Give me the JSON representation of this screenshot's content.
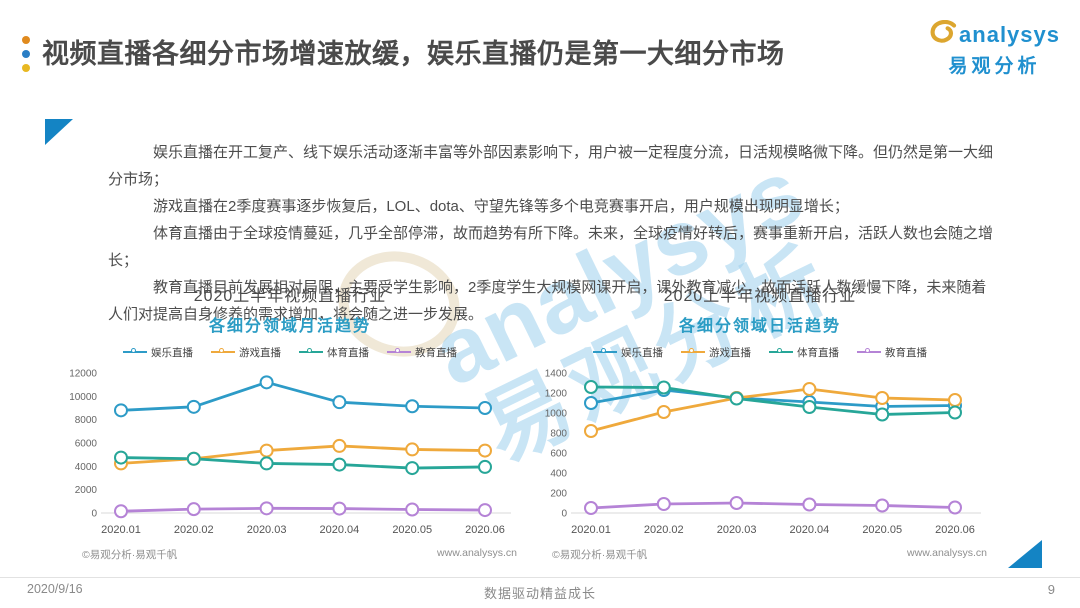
{
  "header": {
    "title": "视频直播各细分市场增速放缓，娱乐直播仍是第一大细分市场",
    "logo": {
      "brand": "analysys",
      "brand_cn": "易观分析"
    }
  },
  "bullets": [
    "娱乐直播在开工复产、线下娱乐活动逐渐丰富等外部因素影响下，用户被一定程度分流，日活规模略微下降。但仍然是第一大细分市场；",
    "游戏直播在2季度赛事逐步恢复后，LOL、dota、守望先锋等多个电竞赛事开启，用户规模出现明显增长；",
    "体育直播由于全球疫情蔓延，几乎全部停滞，故而趋势有所下降。未来，全球疫情好转后，赛事重新开启，活跃人数也会随之增长；",
    "教育直播目前发展相对局限，主要受学生影响，2季度学生大规模网课开启，课外教育减少，故而活跃人数缓慢下降，未来随着人们对提高自身修养的需求增加，将会随之进一步发展。"
  ],
  "chart_data": [
    {
      "type": "line",
      "title": "2020上半年视频直播行业",
      "subtitle": "各细分领域月活趋势",
      "categories": [
        "2020.01",
        "2020.02",
        "2020.03",
        "2020.04",
        "2020.05",
        "2020.06"
      ],
      "ylim": [
        0,
        12000
      ],
      "ytick_step": 2000,
      "grid": false,
      "legend_position": "top",
      "series": [
        {
          "name": "娱乐直播",
          "color": "#2D9BC7",
          "values": [
            8800,
            9100,
            11200,
            9500,
            9150,
            9000
          ]
        },
        {
          "name": "游戏直播",
          "color": "#EFA93C",
          "values": [
            4250,
            4650,
            5350,
            5750,
            5450,
            5350
          ]
        },
        {
          "name": "体育直播",
          "color": "#27A698",
          "values": [
            4750,
            4650,
            4250,
            4150,
            3850,
            3950
          ]
        },
        {
          "name": "教育直播",
          "color": "#B583D6",
          "values": [
            150,
            330,
            400,
            380,
            300,
            250
          ]
        }
      ],
      "source": "©易观分析·易观千帆",
      "website": "www.analysys.cn"
    },
    {
      "type": "line",
      "title": "2020上半年视频直播行业",
      "subtitle": "各细分领域日活趋势",
      "categories": [
        "2020.01",
        "2020.02",
        "2020.03",
        "2020.04",
        "2020.05",
        "2020.06"
      ],
      "ylim": [
        0,
        1400
      ],
      "ytick_step": 200,
      "grid": false,
      "legend_position": "top",
      "series": [
        {
          "name": "娱乐直播",
          "color": "#2D9BC7",
          "values": [
            1100,
            1230,
            1150,
            1110,
            1065,
            1075
          ]
        },
        {
          "name": "游戏直播",
          "color": "#EFA93C",
          "values": [
            820,
            1010,
            1150,
            1240,
            1150,
            1130
          ]
        },
        {
          "name": "体育直播",
          "color": "#27A698",
          "values": [
            1260,
            1255,
            1145,
            1060,
            985,
            1005
          ]
        },
        {
          "name": "教育直播",
          "color": "#B583D6",
          "values": [
            50,
            90,
            100,
            85,
            75,
            55
          ]
        }
      ],
      "source": "©易观分析·易观千帆",
      "website": "www.analysys.cn"
    }
  ],
  "watermark": {
    "text_en": "analysys",
    "text_cn": "易观分析"
  },
  "footer": {
    "date": "2020/9/16",
    "center": "数据驱动精益成长",
    "page": "9"
  },
  "colors": {
    "brand-blue": "#2090CF",
    "logo-gold": "#DCA62F",
    "accent-blue": "#1484C4",
    "dot-orange": "#E08A1E",
    "dot-blue": "#2A7EC5",
    "dot-yellow": "#E8B822",
    "subtitle-teal": "#2B9CC4",
    "title-gray": "#4A4A4A"
  }
}
